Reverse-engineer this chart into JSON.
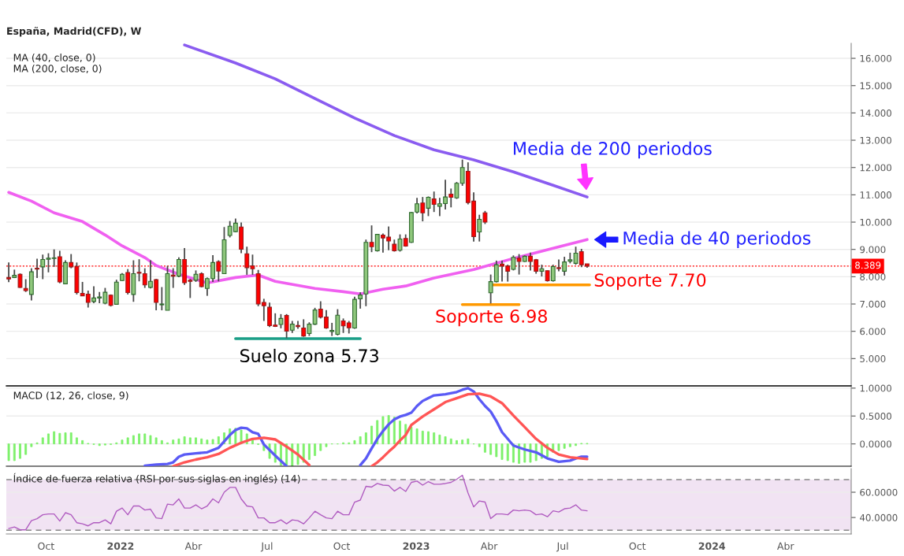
{
  "chart_data": [
    {
      "type": "candlestick",
      "title": "España, Madrid(CFD), W",
      "x": [
        "2021-08-16",
        "2021-08-23",
        "2021-08-30",
        "2021-09-06",
        "2021-09-13",
        "2021-09-20",
        "2021-09-27",
        "2021-10-04",
        "2021-10-11",
        "2021-10-18",
        "2021-10-25",
        "2021-11-01",
        "2021-11-08",
        "2021-11-15",
        "2021-11-22",
        "2021-11-29",
        "2021-12-06",
        "2021-12-13",
        "2021-12-20",
        "2021-12-27",
        "2022-01-03",
        "2022-01-10",
        "2022-01-17",
        "2022-01-24",
        "2022-01-31",
        "2022-02-07",
        "2022-02-14",
        "2022-02-21",
        "2022-02-28",
        "2022-03-07",
        "2022-03-14",
        "2022-03-21",
        "2022-03-28",
        "2022-04-04",
        "2022-04-11",
        "2022-04-18",
        "2022-04-25",
        "2022-05-02",
        "2022-05-09",
        "2022-05-16",
        "2022-05-23",
        "2022-05-30",
        "2022-06-06",
        "2022-06-13",
        "2022-06-20",
        "2022-06-27",
        "2022-07-04",
        "2022-07-11",
        "2022-07-18",
        "2022-07-25",
        "2022-08-01",
        "2022-08-08",
        "2022-08-15",
        "2022-08-22",
        "2022-08-29",
        "2022-09-05",
        "2022-09-12",
        "2022-09-19",
        "2022-09-26",
        "2022-10-03",
        "2022-10-10",
        "2022-10-17",
        "2022-10-24",
        "2022-10-31",
        "2022-11-07",
        "2022-11-14",
        "2022-11-21",
        "2022-11-28",
        "2022-12-05",
        "2022-12-12",
        "2022-12-19",
        "2022-12-26",
        "2023-01-02",
        "2023-01-09",
        "2023-01-16",
        "2023-01-23",
        "2023-01-30",
        "2023-02-06",
        "2023-02-13",
        "2023-02-20",
        "2023-02-27",
        "2023-03-06",
        "2023-03-13",
        "2023-03-20",
        "2023-03-27",
        "2023-04-03",
        "2023-04-10",
        "2023-04-17",
        "2023-04-24",
        "2023-05-01",
        "2023-05-08",
        "2023-05-15",
        "2023-05-22",
        "2023-05-29",
        "2023-06-05",
        "2023-06-12",
        "2023-06-19",
        "2023-06-26",
        "2023-07-03",
        "2023-07-10",
        "2023-07-17",
        "2023-07-24",
        "2023-07-31"
      ],
      "ohlc": [
        [
          7.97,
          8.52,
          7.8,
          7.92
        ],
        [
          7.97,
          8.26,
          7.95,
          8.05
        ],
        [
          8.09,
          8.12,
          7.59,
          7.61
        ],
        [
          7.57,
          7.91,
          7.44,
          7.49
        ],
        [
          7.35,
          8.31,
          7.13,
          8.18
        ],
        [
          8.31,
          8.66,
          7.95,
          8.28
        ],
        [
          8.36,
          8.81,
          7.91,
          8.63
        ],
        [
          8.64,
          8.86,
          8.16,
          8.68
        ],
        [
          8.67,
          9.0,
          8.36,
          8.69
        ],
        [
          8.73,
          8.95,
          7.76,
          7.81
        ],
        [
          7.74,
          8.6,
          7.73,
          8.52
        ],
        [
          8.52,
          8.83,
          8.31,
          8.36
        ],
        [
          8.38,
          8.52,
          7.35,
          7.42
        ],
        [
          7.39,
          7.81,
          7.3,
          7.3
        ],
        [
          7.36,
          7.49,
          6.87,
          7.06
        ],
        [
          7.09,
          7.65,
          7.03,
          7.22
        ],
        [
          7.22,
          7.44,
          7.03,
          7.26
        ],
        [
          7.03,
          7.59,
          6.99,
          7.43
        ],
        [
          7.32,
          7.35,
          6.91,
          6.95
        ],
        [
          6.99,
          7.89,
          6.99,
          7.8
        ],
        [
          7.86,
          8.13,
          7.84,
          8.09
        ],
        [
          8.15,
          8.28,
          7.35,
          7.42
        ],
        [
          7.35,
          8.6,
          7.08,
          8.11
        ],
        [
          8.16,
          8.64,
          7.83,
          8.13
        ],
        [
          8.11,
          8.31,
          7.59,
          7.7
        ],
        [
          7.61,
          8.6,
          7.57,
          7.83
        ],
        [
          7.89,
          7.92,
          6.77,
          7.06
        ],
        [
          6.97,
          7.62,
          6.77,
          7.0
        ],
        [
          6.77,
          8.4,
          6.77,
          8.11
        ],
        [
          8.06,
          8.31,
          7.59,
          8.02
        ],
        [
          8.02,
          8.71,
          7.98,
          8.63
        ],
        [
          8.63,
          9.05,
          7.7,
          7.78
        ],
        [
          7.87,
          7.92,
          7.22,
          7.83
        ],
        [
          7.87,
          8.23,
          7.81,
          8.09
        ],
        [
          8.11,
          8.16,
          7.61,
          7.64
        ],
        [
          7.57,
          7.97,
          7.3,
          7.93
        ],
        [
          7.93,
          8.79,
          7.81,
          8.52
        ],
        [
          8.55,
          8.6,
          7.83,
          8.21
        ],
        [
          8.11,
          9.82,
          8.11,
          9.35
        ],
        [
          9.51,
          10.04,
          9.44,
          9.85
        ],
        [
          9.65,
          10.13,
          9.63,
          9.96
        ],
        [
          9.82,
          9.99,
          8.86,
          9.01
        ],
        [
          8.84,
          9.1,
          8.07,
          8.33
        ],
        [
          8.4,
          8.81,
          8.07,
          8.29
        ],
        [
          8.11,
          8.25,
          6.92,
          7.0
        ],
        [
          7.06,
          7.19,
          6.38,
          6.94
        ],
        [
          6.88,
          7.05,
          6.16,
          6.21
        ],
        [
          6.23,
          6.66,
          6.16,
          6.18
        ],
        [
          6.25,
          6.63,
          6.11,
          6.47
        ],
        [
          6.58,
          6.63,
          5.75,
          6.01
        ],
        [
          6.04,
          6.38,
          5.94,
          6.26
        ],
        [
          6.21,
          6.38,
          6.09,
          6.17
        ],
        [
          6.12,
          6.44,
          5.8,
          5.83
        ],
        [
          5.92,
          6.33,
          5.83,
          6.26
        ],
        [
          6.26,
          6.86,
          6.23,
          6.78
        ],
        [
          6.81,
          7.1,
          6.47,
          6.52
        ],
        [
          6.52,
          6.78,
          6.09,
          6.12
        ],
        [
          5.99,
          6.31,
          5.83,
          6.03
        ],
        [
          5.89,
          6.81,
          5.85,
          6.59
        ],
        [
          6.38,
          6.47,
          5.94,
          6.2
        ],
        [
          6.31,
          6.38,
          5.92,
          6.13
        ],
        [
          6.12,
          7.27,
          6.09,
          7.17
        ],
        [
          7.19,
          7.43,
          6.83,
          7.33
        ],
        [
          7.37,
          9.36,
          6.92,
          9.26
        ],
        [
          9.26,
          9.88,
          8.9,
          9.1
        ],
        [
          8.95,
          9.55,
          8.92,
          9.55
        ],
        [
          9.52,
          9.58,
          8.88,
          9.42
        ],
        [
          9.45,
          9.84,
          8.97,
          9.31
        ],
        [
          9.19,
          9.36,
          8.92,
          8.95
        ],
        [
          8.97,
          9.55,
          8.92,
          9.38
        ],
        [
          9.4,
          9.55,
          9.1,
          9.12
        ],
        [
          9.26,
          10.37,
          9.24,
          10.35
        ],
        [
          10.37,
          10.89,
          10.32,
          10.67
        ],
        [
          10.7,
          10.92,
          10.03,
          10.34
        ],
        [
          10.51,
          10.94,
          10.22,
          10.91
        ],
        [
          10.85,
          11.12,
          10.37,
          10.65
        ],
        [
          10.58,
          10.89,
          10.22,
          10.67
        ],
        [
          10.68,
          11.55,
          10.46,
          10.92
        ],
        [
          11.02,
          11.23,
          10.54,
          10.91
        ],
        [
          10.89,
          11.47,
          10.85,
          11.42
        ],
        [
          11.42,
          12.29,
          11.33,
          12.0
        ],
        [
          11.86,
          12.19,
          10.65,
          10.72
        ],
        [
          10.77,
          11.09,
          9.29,
          9.47
        ],
        [
          9.64,
          10.27,
          9.29,
          10.1
        ],
        [
          10.34,
          10.41,
          9.93,
          10.0
        ],
        [
          7.41,
          8.08,
          7.02,
          7.82
        ],
        [
          7.82,
          8.59,
          7.79,
          8.44
        ],
        [
          8.46,
          8.59,
          7.82,
          8.39
        ],
        [
          8.39,
          8.44,
          7.82,
          8.2
        ],
        [
          8.27,
          8.78,
          8.23,
          8.71
        ],
        [
          8.68,
          8.83,
          8.08,
          8.56
        ],
        [
          8.56,
          8.78,
          8.54,
          8.75
        ],
        [
          8.75,
          8.88,
          8.23,
          8.56
        ],
        [
          8.62,
          8.65,
          8.11,
          8.2
        ],
        [
          8.2,
          8.44,
          8.01,
          8.29
        ],
        [
          8.22,
          8.23,
          7.82,
          7.85
        ],
        [
          7.85,
          8.44,
          7.82,
          8.37
        ],
        [
          8.33,
          8.63,
          8.2,
          8.3
        ],
        [
          8.2,
          8.73,
          8.04,
          8.54
        ],
        [
          8.57,
          8.88,
          8.49,
          8.62
        ],
        [
          8.49,
          9.1,
          8.44,
          8.86
        ],
        [
          8.92,
          9.02,
          8.35,
          8.44
        ],
        [
          8.47,
          8.47,
          8.33,
          8.389
        ]
      ],
      "series": [
        {
          "type": "line",
          "color": "#8a5cf0",
          "x": [
            "2022-03-21",
            "2022-05-23",
            "2022-07-11",
            "2022-08-29",
            "2022-10-17",
            "2022-12-05",
            "2023-01-23",
            "2023-03-13",
            "2023-05-01",
            "2023-06-19",
            "2023-07-31"
          ],
          "values": [
            16.49,
            15.83,
            15.25,
            14.53,
            13.81,
            13.17,
            12.65,
            12.28,
            11.84,
            11.35,
            10.92
          ]
        },
        {
          "type": "line",
          "color": "#f060f0",
          "x": [
            "2021-08-16",
            "2021-09-13",
            "2021-10-11",
            "2021-11-15",
            "2021-12-13",
            "2022-01-03",
            "2022-01-31",
            "2022-02-14",
            "2022-03-14",
            "2022-04-18",
            "2022-05-23",
            "2022-06-20",
            "2022-07-11",
            "2022-08-29",
            "2022-10-03",
            "2022-10-24",
            "2022-11-21",
            "2022-12-19",
            "2023-01-23",
            "2023-03-13",
            "2023-05-01",
            "2023-06-19",
            "2023-07-31"
          ],
          "values": [
            11.09,
            10.77,
            10.34,
            10.02,
            9.53,
            9.13,
            8.7,
            8.41,
            8.09,
            7.77,
            7.97,
            8.06,
            7.83,
            7.57,
            7.45,
            7.37,
            7.54,
            7.66,
            7.95,
            8.26,
            8.67,
            9.04,
            9.36
          ]
        },
        {
          "type": "line",
          "color": "#1a9e87",
          "x": [
            "2022-05-23",
            "2022-10-24"
          ],
          "values": [
            5.73,
            5.73
          ]
        },
        {
          "type": "line",
          "color": "#ff9900",
          "x": [
            "2023-02-27",
            "2023-05-08"
          ],
          "values": [
            6.98,
            6.98
          ]
        },
        {
          "type": "line",
          "color": "#ff9900",
          "x": [
            "2023-04-03",
            "2023-08-03"
          ],
          "values": [
            7.7,
            7.7
          ]
        }
      ],
      "ref_lines": [
        {
          "axis": "y",
          "value": 8.389,
          "label": "8.389",
          "color": "#ff0000",
          "line_style": "dotted"
        }
      ],
      "annotations": [
        "MA (40, close, 0)",
        "MA (200, close, 0)",
        {
          "text": "Media de 200 periodos",
          "x": "2023-07-31",
          "y": 10.92
        },
        {
          "text": "Media de 40 periodos",
          "x": "2023-07-31",
          "y": 9.36
        },
        {
          "text": "Soporte 7.70",
          "x": "2023-07-31",
          "y": 7.7
        },
        {
          "text": "Soporte 6.98",
          "x": "2023-03-27",
          "y": 6.98
        },
        {
          "text": "Suelo zona 5.73",
          "x": "2022-08-29",
          "y": 5.73
        }
      ],
      "xlim": [
        "2021-08-13",
        "2024-06-21"
      ],
      "ylim": [
        4.0,
        16.55
      ],
      "yticks": [
        {
          "value": 5,
          "label": "5.000"
        },
        {
          "value": 6,
          "label": "6.000"
        },
        {
          "value": 7,
          "label": "7.000"
        },
        {
          "value": 8,
          "label": "8.000"
        },
        {
          "value": 9,
          "label": "9.000"
        },
        {
          "value": 10,
          "label": "10.000"
        },
        {
          "value": 11,
          "label": "11.000"
        },
        {
          "value": 12,
          "label": "12.000"
        },
        {
          "value": 13,
          "label": "13.000"
        },
        {
          "value": 14,
          "label": "14.000"
        },
        {
          "value": 15,
          "label": "15.000"
        },
        {
          "value": 16,
          "label": "16.000"
        }
      ],
      "tick_labels": "y",
      "grid": "y"
    },
    {
      "type": "line",
      "title": "MACD (12, 26, close, 9)",
      "x": [
        "2021-08-16",
        "2021-08-23",
        "2021-08-30",
        "2021-09-06",
        "2021-09-13",
        "2021-09-20",
        "2021-09-27",
        "2021-10-04",
        "2021-10-11",
        "2021-10-18",
        "2021-10-25",
        "2021-11-01",
        "2021-11-08",
        "2021-11-15",
        "2021-11-22",
        "2021-11-29",
        "2021-12-06",
        "2021-12-13",
        "2021-12-20",
        "2021-12-27",
        "2022-01-03",
        "2022-01-10",
        "2022-01-17",
        "2022-01-24",
        "2022-01-31",
        "2022-02-07",
        "2022-02-14",
        "2022-02-21",
        "2022-02-28",
        "2022-03-07",
        "2022-03-14",
        "2022-03-21",
        "2022-03-28",
        "2022-04-04",
        "2022-04-11",
        "2022-04-18",
        "2022-04-25",
        "2022-05-02",
        "2022-05-09",
        "2022-05-16",
        "2022-05-23",
        "2022-05-30",
        "2022-06-06",
        "2022-06-13",
        "2022-06-20",
        "2022-06-27",
        "2022-07-04",
        "2022-07-11",
        "2022-07-18",
        "2022-07-25",
        "2022-08-01",
        "2022-08-08",
        "2022-08-15",
        "2022-08-22",
        "2022-08-29",
        "2022-09-05",
        "2022-09-12",
        "2022-09-19",
        "2022-09-26",
        "2022-10-03",
        "2022-10-10",
        "2022-10-17",
        "2022-10-24",
        "2022-10-31",
        "2022-11-07",
        "2022-11-14",
        "2022-11-21",
        "2022-11-28",
        "2022-12-05",
        "2022-12-12",
        "2022-12-19",
        "2022-12-26",
        "2023-01-02",
        "2023-01-09",
        "2023-01-16",
        "2023-01-23",
        "2023-01-30",
        "2023-02-06",
        "2023-02-13",
        "2023-02-20",
        "2023-02-27",
        "2023-03-06",
        "2023-03-13",
        "2023-03-20",
        "2023-03-27",
        "2023-04-03",
        "2023-04-10",
        "2023-04-17",
        "2023-04-24",
        "2023-05-01",
        "2023-05-08",
        "2023-05-15",
        "2023-05-22",
        "2023-05-29",
        "2023-06-05",
        "2023-06-12",
        "2023-06-19",
        "2023-06-26",
        "2023-07-03",
        "2023-07-10",
        "2023-07-17",
        "2023-07-24",
        "2023-07-31"
      ],
      "series": [
        {
          "type": "bar",
          "color": "#7df06a",
          "values": [
            -0.3,
            -0.3,
            -0.26,
            -0.19,
            -0.05,
            0.02,
            0.11,
            0.18,
            0.22,
            0.19,
            0.2,
            0.2,
            0.11,
            0.06,
            0.01,
            -0.01,
            -0.03,
            -0.02,
            -0.01,
            0.02,
            0.07,
            0.11,
            0.15,
            0.18,
            0.18,
            0.15,
            0.11,
            0.06,
            0.02,
            0.07,
            0.09,
            0.13,
            0.11,
            0.11,
            0.09,
            0.07,
            0.08,
            0.13,
            0.2,
            0.27,
            0.28,
            0.25,
            0.18,
            0.09,
            -0.01,
            -0.12,
            -0.26,
            -0.33,
            -0.38,
            -0.38,
            -0.4,
            -0.37,
            -0.33,
            -0.28,
            -0.21,
            -0.12,
            -0.05,
            0.0,
            0.0,
            0.02,
            0.02,
            0.06,
            0.13,
            0.2,
            0.32,
            0.42,
            0.49,
            0.51,
            0.48,
            0.41,
            0.35,
            0.3,
            0.27,
            0.23,
            0.22,
            0.2,
            0.16,
            0.13,
            0.09,
            0.06,
            0.07,
            0.09,
            0.0,
            -0.05,
            -0.15,
            -0.19,
            -0.23,
            -0.28,
            -0.3,
            -0.33,
            -0.35,
            -0.33,
            -0.33,
            -0.3,
            -0.26,
            -0.23,
            -0.15,
            -0.12,
            -0.08,
            -0.05,
            -0.03,
            0.01,
            0.01
          ]
        },
        {
          "type": "line",
          "color": "#5a5af5",
          "x": [
            "2022-01-31",
            "2022-02-14",
            "2022-02-28",
            "2022-03-07",
            "2022-03-14",
            "2022-03-21",
            "2022-04-04",
            "2022-04-18",
            "2022-05-02",
            "2022-05-16",
            "2022-05-23",
            "2022-05-30",
            "2022-06-06",
            "2022-06-13",
            "2022-06-20",
            "2022-06-27",
            "2022-07-11",
            "2022-07-25"
          ],
          "values": [
            -0.39,
            -0.37,
            -0.36,
            -0.33,
            -0.23,
            -0.19,
            -0.17,
            -0.15,
            -0.07,
            0.16,
            0.25,
            0.29,
            0.28,
            0.21,
            0.18,
            -0.01,
            -0.21,
            -0.4
          ]
        },
        {
          "type": "line",
          "color": "#ff5555",
          "x": [
            "2022-03-07",
            "2022-03-21",
            "2022-04-04",
            "2022-04-18",
            "2022-05-02",
            "2022-05-16",
            "2022-05-30",
            "2022-06-13",
            "2022-06-27",
            "2022-07-11",
            "2022-07-25",
            "2022-08-08",
            "2022-08-22"
          ],
          "values": [
            -0.4,
            -0.33,
            -0.28,
            -0.24,
            -0.18,
            -0.07,
            0.02,
            0.09,
            0.11,
            0.08,
            -0.05,
            -0.19,
            -0.38
          ]
        },
        {
          "type": "line",
          "color": "#5a5af5",
          "x": [
            "2022-10-24",
            "2022-10-31",
            "2022-11-07",
            "2022-11-14",
            "2022-11-21",
            "2022-11-28",
            "2022-12-05",
            "2022-12-12",
            "2022-12-19",
            "2022-12-26",
            "2023-01-02",
            "2023-01-09",
            "2023-01-16",
            "2023-01-23",
            "2023-02-06",
            "2023-02-20",
            "2023-02-27",
            "2023-03-06",
            "2023-03-13",
            "2023-03-20",
            "2023-03-27",
            "2023-04-03",
            "2023-04-10",
            "2023-04-17",
            "2023-04-24",
            "2023-05-01",
            "2023-05-15",
            "2023-05-29",
            "2023-06-12",
            "2023-06-26",
            "2023-07-10",
            "2023-07-17",
            "2023-07-24",
            "2023-07-31"
          ],
          "values": [
            -0.38,
            -0.26,
            -0.08,
            0.09,
            0.23,
            0.35,
            0.44,
            0.49,
            0.52,
            0.56,
            0.68,
            0.77,
            0.82,
            0.87,
            0.89,
            0.93,
            0.97,
            1.0,
            0.94,
            0.8,
            0.68,
            0.58,
            0.41,
            0.21,
            0.09,
            -0.03,
            -0.1,
            -0.15,
            -0.26,
            -0.32,
            -0.3,
            -0.26,
            -0.23,
            -0.23
          ]
        },
        {
          "type": "line",
          "color": "#ff5555",
          "x": [
            "2022-11-07",
            "2022-11-14",
            "2022-11-21",
            "2022-11-28",
            "2022-12-05",
            "2022-12-12",
            "2022-12-19",
            "2022-12-26",
            "2023-01-09",
            "2023-01-23",
            "2023-02-06",
            "2023-02-20",
            "2023-03-06",
            "2023-03-20",
            "2023-04-03",
            "2023-04-17",
            "2023-05-01",
            "2023-05-15",
            "2023-05-29",
            "2023-06-12",
            "2023-06-26",
            "2023-07-10",
            "2023-07-24",
            "2023-07-31"
          ],
          "values": [
            -0.4,
            -0.33,
            -0.24,
            -0.14,
            -0.05,
            0.06,
            0.16,
            0.34,
            0.49,
            0.62,
            0.75,
            0.82,
            0.89,
            0.9,
            0.85,
            0.73,
            0.51,
            0.3,
            0.09,
            -0.07,
            -0.19,
            -0.24,
            -0.26,
            -0.27
          ]
        }
      ],
      "xlim": [
        "2021-08-13",
        "2024-06-21"
      ],
      "ylim": [
        -0.4,
        1.04
      ],
      "yticks": [
        {
          "value": 0,
          "label": "0.0000"
        },
        {
          "value": 0.5,
          "label": "0.5000"
        },
        {
          "value": 1,
          "label": "1.0000"
        }
      ],
      "tick_labels": "y",
      "grid": "y"
    },
    {
      "type": "line",
      "title": "Índice de fuerza relativa (RSI por sus siglas en inglés) (14)",
      "color": "#b05cc0",
      "x": [
        "2021-08-16",
        "2021-08-23",
        "2021-08-30",
        "2021-09-06",
        "2021-09-13",
        "2021-09-20",
        "2021-09-27",
        "2021-10-04",
        "2021-10-11",
        "2021-10-18",
        "2021-10-25",
        "2021-11-01",
        "2021-11-08",
        "2021-11-15",
        "2021-11-22",
        "2021-11-29",
        "2021-12-06",
        "2021-12-13",
        "2021-12-20",
        "2021-12-27",
        "2022-01-03",
        "2022-01-10",
        "2022-01-17",
        "2022-01-24",
        "2022-01-31",
        "2022-02-07",
        "2022-02-14",
        "2022-02-21",
        "2022-02-28",
        "2022-03-07",
        "2022-03-14",
        "2022-03-21",
        "2022-03-28",
        "2022-04-04",
        "2022-04-11",
        "2022-04-18",
        "2022-04-25",
        "2022-05-02",
        "2022-05-09",
        "2022-05-16",
        "2022-05-23",
        "2022-05-30",
        "2022-06-06",
        "2022-06-13",
        "2022-06-20",
        "2022-06-27",
        "2022-07-04",
        "2022-07-11",
        "2022-07-18",
        "2022-07-25",
        "2022-08-01",
        "2022-08-08",
        "2022-08-15",
        "2022-08-22",
        "2022-08-29",
        "2022-09-05",
        "2022-09-12",
        "2022-09-19",
        "2022-09-26",
        "2022-10-03",
        "2022-10-10",
        "2022-10-17",
        "2022-10-24",
        "2022-10-31",
        "2022-11-07",
        "2022-11-14",
        "2022-11-21",
        "2022-11-28",
        "2022-12-05",
        "2022-12-12",
        "2022-12-19",
        "2022-12-26",
        "2023-01-02",
        "2023-01-09",
        "2023-01-16",
        "2023-01-23",
        "2023-01-30",
        "2023-02-06",
        "2023-02-13",
        "2023-02-20",
        "2023-02-27",
        "2023-03-06",
        "2023-03-13",
        "2023-03-20",
        "2023-03-27",
        "2023-04-03",
        "2023-04-10",
        "2023-04-17",
        "2023-04-24",
        "2023-05-01",
        "2023-05-08",
        "2023-05-15",
        "2023-05-22",
        "2023-05-29",
        "2023-06-05",
        "2023-06-12",
        "2023-06-19",
        "2023-06-26",
        "2023-07-03",
        "2023-07-10",
        "2023-07-17",
        "2023-07-24",
        "2023-07-31"
      ],
      "values": [
        31.3,
        32.5,
        30.3,
        30.3,
        37.5,
        39.1,
        42.2,
        42.8,
        42.8,
        37.2,
        43.8,
        42.2,
        35.9,
        35.0,
        33.4,
        35.9,
        35.9,
        38.1,
        35.0,
        45.0,
        47.5,
        42.2,
        49.1,
        49.1,
        45.9,
        46.6,
        39.7,
        39.1,
        50.6,
        50.0,
        54.7,
        47.5,
        47.5,
        50.0,
        46.9,
        49.1,
        54.7,
        51.6,
        60.0,
        63.8,
        63.8,
        54.7,
        49.1,
        48.4,
        39.7,
        39.7,
        35.9,
        35.9,
        38.1,
        35.0,
        38.1,
        37.5,
        35.0,
        39.7,
        45.0,
        42.2,
        39.7,
        39.1,
        45.0,
        42.2,
        42.2,
        52.2,
        53.8,
        64.7,
        64.1,
        66.9,
        65.6,
        65.3,
        60.9,
        63.8,
        60.6,
        67.8,
        68.8,
        65.6,
        68.4,
        66.3,
        66.3,
        66.9,
        67.8,
        70.3,
        73.4,
        59.4,
        48.4,
        53.1,
        52.2,
        39.1,
        42.8,
        42.8,
        42.2,
        45.9,
        45.3,
        45.9,
        45.3,
        42.2,
        42.8,
        40.6,
        45.3,
        44.4,
        46.9,
        47.5,
        50.0,
        45.9,
        45.3
      ],
      "bands": [
        {
          "axis": "y",
          "from": 30,
          "to": 70,
          "color": "#f1e3f3"
        }
      ],
      "ref_lines": [
        {
          "axis": "y",
          "value": 70,
          "color": "#888888",
          "line_style": "dashed"
        },
        {
          "axis": "y",
          "value": 30,
          "color": "#888888",
          "line_style": "dashed"
        }
      ],
      "xlim": [
        "2021-08-13",
        "2024-06-21"
      ],
      "ylim": [
        27,
        78.7
      ],
      "xticks": [
        {
          "value": "2021-10-01",
          "label": "Oct"
        },
        {
          "value": "2022-01-01",
          "label": "2022"
        },
        {
          "value": "2022-04-01",
          "label": "Abr"
        },
        {
          "value": "2022-07-01",
          "label": "Jul"
        },
        {
          "value": "2022-10-01",
          "label": "Oct"
        },
        {
          "value": "2023-01-01",
          "label": "2023"
        },
        {
          "value": "2023-04-01",
          "label": "Abr"
        },
        {
          "value": "2023-07-01",
          "label": "Jul"
        },
        {
          "value": "2023-10-01",
          "label": "Oct"
        },
        {
          "value": "2024-01-01",
          "label": "2024"
        },
        {
          "value": "2024-04-01",
          "label": "Abr"
        }
      ],
      "yticks": [
        {
          "value": 40,
          "label": "40.0000"
        },
        {
          "value": 60,
          "label": "60.0000"
        }
      ],
      "grid": "y"
    }
  ]
}
